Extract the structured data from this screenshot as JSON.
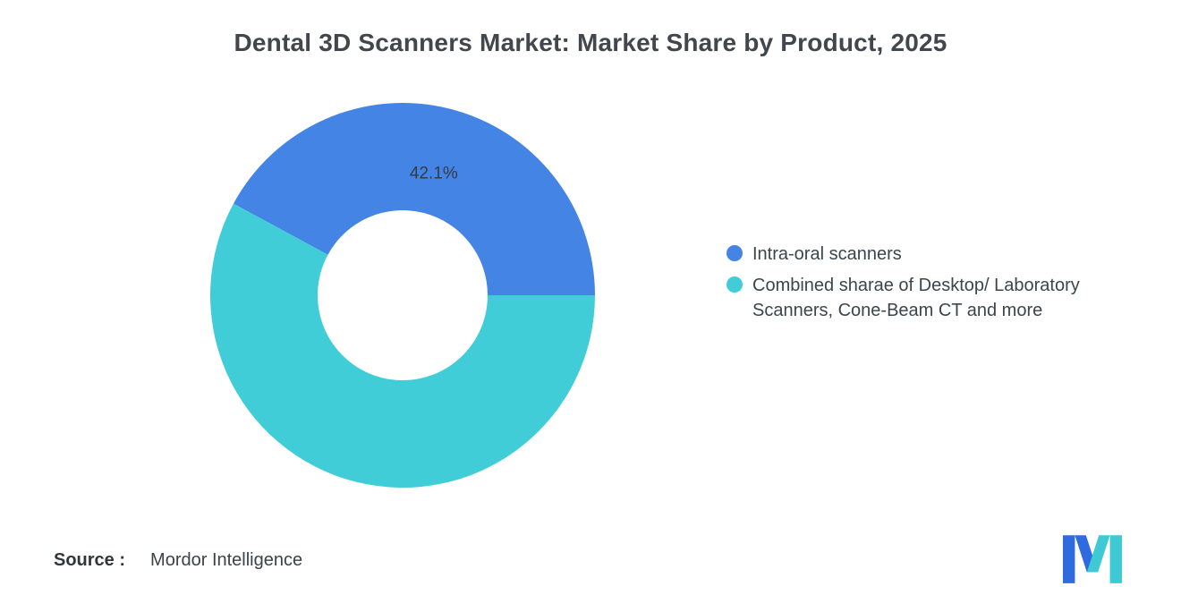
{
  "title": "Dental 3D Scanners Market: Market Share by Product, 2025",
  "chart_data": {
    "type": "pie",
    "donut": true,
    "title": "Dental 3D Scanners Market: Market Share by Product, 2025",
    "legend_position": "right",
    "total": 100,
    "slices": [
      {
        "label": "Intra-oral scanners",
        "value": 42.1,
        "data_label": "42.1%",
        "color": "#4484e4"
      },
      {
        "label": "Combined sharae of Desktop/ Laboratory Scanners, Cone-Beam CT and more",
        "value": 57.9,
        "data_label": "",
        "color": "#41cdd8"
      }
    ]
  },
  "legend": {
    "items": [
      {
        "label": "Intra-oral scanners",
        "color": "#4484e4"
      },
      {
        "label": "Combined sharae of Desktop/ Laboratory Scanners, Cone-Beam CT and more",
        "color": "#41cdd8"
      }
    ]
  },
  "source": {
    "label": "Source :",
    "value": "Mordor Intelligence"
  },
  "logo": {
    "name": "mordor-intelligence-logo",
    "blue": "#2e6bdf",
    "teal": "#3fc9d4"
  }
}
